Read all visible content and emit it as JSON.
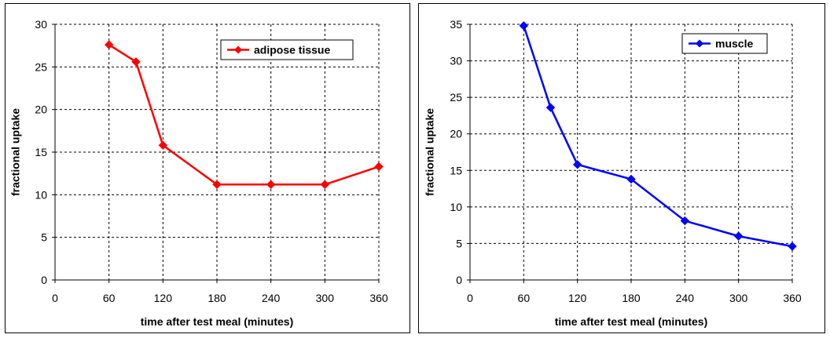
{
  "chart_data": [
    {
      "type": "line",
      "title": "",
      "xlabel": "time after test meal (minutes)",
      "ylabel": "fractional uptake",
      "xlim": [
        0,
        360
      ],
      "ylim": [
        0,
        30
      ],
      "xticks": [
        0,
        60,
        120,
        180,
        240,
        300,
        360
      ],
      "yticks": [
        0,
        5,
        10,
        15,
        20,
        25,
        30
      ],
      "grid": true,
      "legend_position": "top-right",
      "series": [
        {
          "name": "adipose tissue",
          "color": "#ff0000",
          "marker": "diamond",
          "x": [
            60,
            90,
            120,
            180,
            240,
            300,
            360
          ],
          "y": [
            27.6,
            25.6,
            15.8,
            11.2,
            11.2,
            11.2,
            13.3
          ]
        }
      ]
    },
    {
      "type": "line",
      "title": "",
      "xlabel": "time after test meal (minutes)",
      "ylabel": "fractional uptake",
      "xlim": [
        0,
        360
      ],
      "ylim": [
        0,
        35
      ],
      "xticks": [
        0,
        60,
        120,
        180,
        240,
        300,
        360
      ],
      "yticks": [
        0,
        5,
        10,
        15,
        20,
        25,
        30,
        35
      ],
      "grid": true,
      "legend_position": "top-right",
      "series": [
        {
          "name": "muscle",
          "color": "#0000ff",
          "marker": "diamond",
          "x": [
            60,
            90,
            120,
            180,
            240,
            300,
            360
          ],
          "y": [
            34.8,
            23.6,
            15.8,
            13.8,
            8.1,
            6.0,
            4.6
          ]
        }
      ]
    }
  ]
}
